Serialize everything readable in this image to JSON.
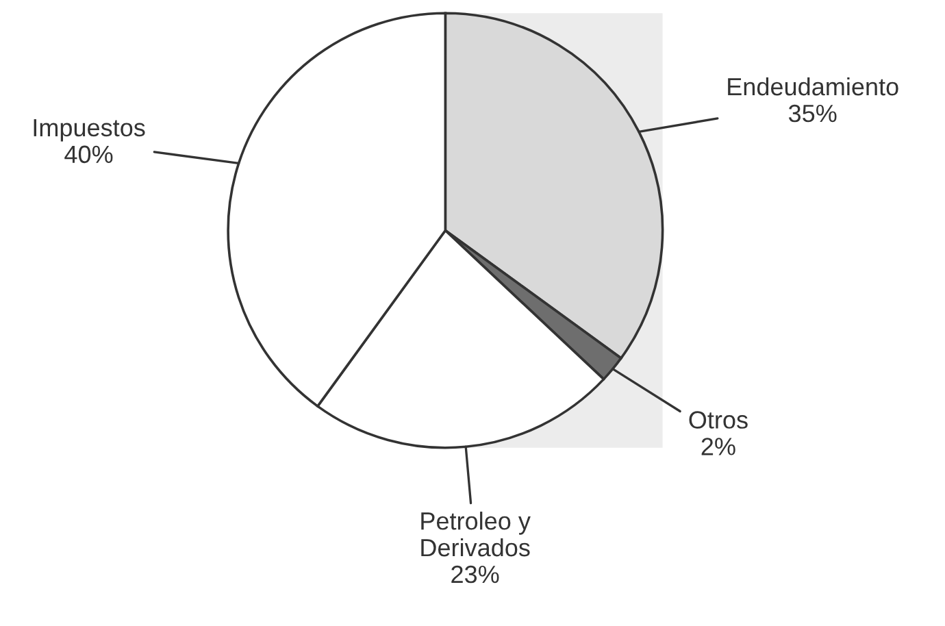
{
  "chart_data": {
    "type": "pie",
    "categories": [
      "Endeudamiento",
      "Otros",
      "Petroleo y\nDerivados",
      "Impuestos"
    ],
    "values": [
      35,
      2,
      23,
      40
    ],
    "colors": [
      "#d9d9d9",
      "#6e6e6e",
      "#ffffff",
      "#ffffff"
    ],
    "value_labels": [
      "35%",
      "2%",
      "23%",
      "40%"
    ],
    "legend": false
  }
}
